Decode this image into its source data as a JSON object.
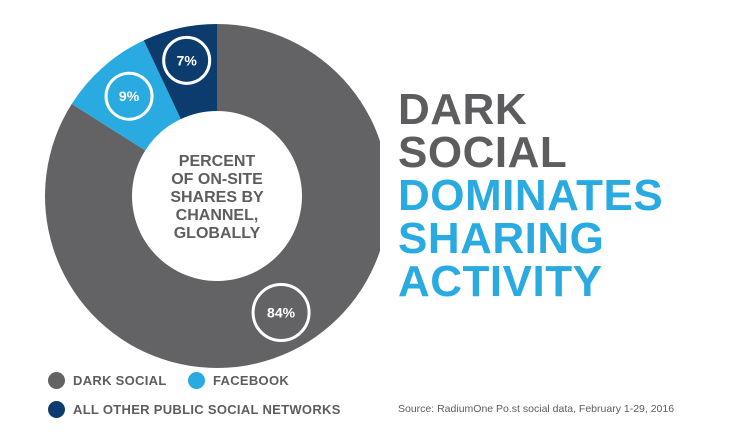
{
  "chart_data": {
    "type": "pie",
    "style": "donut",
    "center_label": [
      "PERCENT",
      "OF ON-SITE",
      "SHARES BY",
      "CHANNEL,",
      "GLOBALLY"
    ],
    "categories": [
      "DARK SOCIAL",
      "FACEBOOK",
      "ALL OTHER PUBLIC SOCIAL NETWORKS"
    ],
    "values": [
      84,
      9,
      7
    ],
    "value_labels": [
      "84%",
      "9%",
      "7%"
    ],
    "colors": [
      "#636366",
      "#29abe2",
      "#0c3c6e"
    ],
    "legend_position": "bottom-left"
  },
  "headline": {
    "line1": "DARK",
    "line2": "SOCIAL",
    "line3": "DOMINATES",
    "line4": "SHARING",
    "line5": "ACTIVITY"
  },
  "source": "Source: RadiumOne Po.st social data, February 1-29, 2016",
  "colors": {
    "dark_gray_text": "#5d5d60",
    "accent_blue": "#29abe2"
  }
}
